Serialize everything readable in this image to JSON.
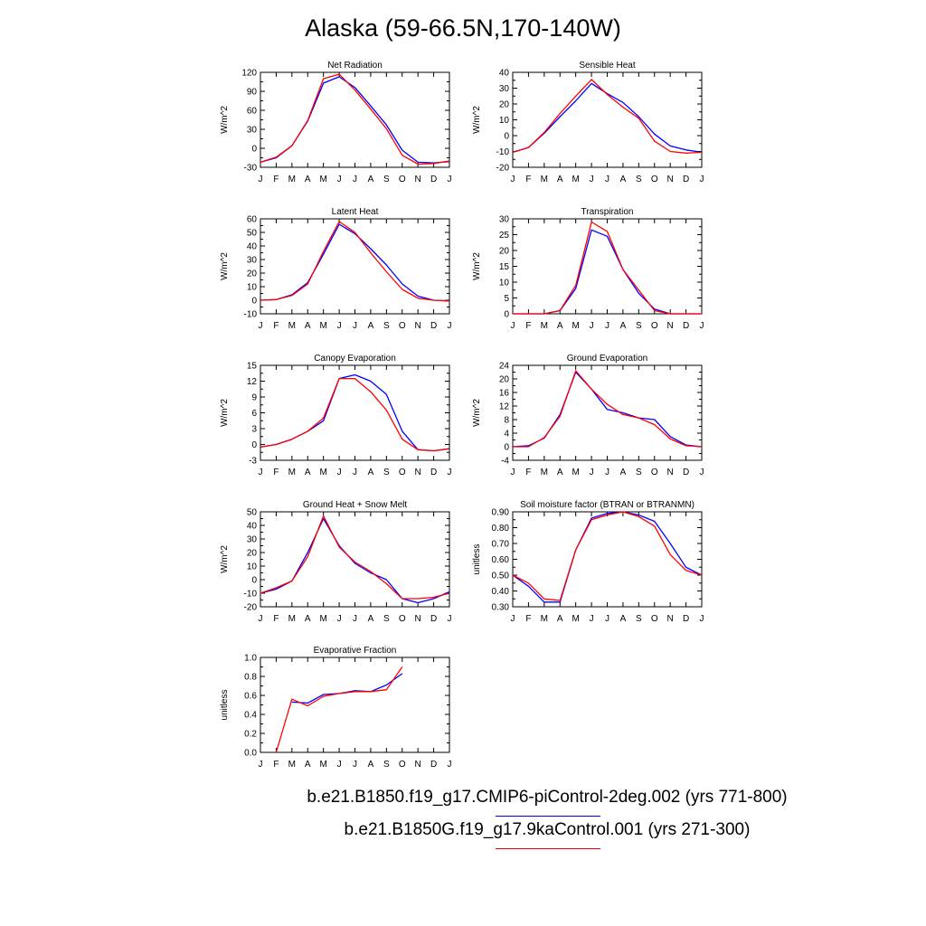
{
  "title": "Alaska (59-66.5N,170-140W)",
  "colors": {
    "series1": "#0000ff",
    "series2": "#ff0000"
  },
  "legend": [
    {
      "label": "b.e21.B1850.f19_g17.CMIP6-piControl-2deg.002 (yrs 771-800)",
      "color": "#0000ff"
    },
    {
      "label": "b.e21.B1850G.f19_g17.9kaControl.001 (yrs 271-300)",
      "color": "#ff0000"
    }
  ],
  "chart_data": [
    {
      "type": "line",
      "title": "Net Radiation",
      "ylabel": "W/m^2",
      "x": [
        "J",
        "F",
        "M",
        "A",
        "M",
        "J",
        "J",
        "A",
        "S",
        "O",
        "N",
        "D",
        "J"
      ],
      "yticks": [
        "-30",
        "0",
        "30",
        "60",
        "90",
        "120"
      ],
      "ylim": [
        -30,
        120
      ],
      "series": [
        {
          "values": [
            -22,
            -15,
            4,
            43,
            103,
            113,
            96,
            67,
            37,
            -3,
            -22,
            -23,
            -21
          ]
        },
        {
          "values": [
            -22,
            -14,
            4,
            44,
            110,
            117,
            92,
            62,
            31,
            -11,
            -25,
            -24,
            -20
          ]
        }
      ]
    },
    {
      "type": "line",
      "title": "Sensible Heat",
      "ylabel": "W/m^2",
      "x": [
        "J",
        "F",
        "M",
        "A",
        "M",
        "J",
        "J",
        "A",
        "S",
        "O",
        "N",
        "D",
        "J"
      ],
      "yticks": [
        "-20",
        "-10",
        "0",
        "10",
        "20",
        "30",
        "40"
      ],
      "ylim": [
        -20,
        40
      ],
      "series": [
        {
          "values": [
            -10.5,
            -7.5,
            1.5,
            12,
            22,
            33,
            26.5,
            21,
            12,
            1,
            -6.5,
            -9,
            -10.5
          ]
        },
        {
          "values": [
            -10.5,
            -7.5,
            2,
            14,
            25,
            35.5,
            26,
            18,
            11,
            -3.5,
            -10,
            -11,
            -10.5
          ]
        }
      ]
    },
    {
      "type": "line",
      "title": "Latent Heat",
      "ylabel": "W/m^2",
      "x": [
        "J",
        "F",
        "M",
        "A",
        "M",
        "J",
        "J",
        "A",
        "S",
        "O",
        "N",
        "D",
        "J"
      ],
      "yticks": [
        "-10",
        "0",
        "10",
        "20",
        "30",
        "40",
        "50",
        "60"
      ],
      "ylim": [
        -10,
        60
      ],
      "series": [
        {
          "values": [
            0,
            0.5,
            4,
            13,
            34,
            56,
            49,
            38,
            26,
            12,
            3,
            0,
            -0.5
          ]
        },
        {
          "values": [
            0,
            0.5,
            3.5,
            12,
            36,
            58,
            50,
            35,
            21,
            8,
            1.5,
            0,
            -0.5
          ]
        }
      ]
    },
    {
      "type": "line",
      "title": "Transpiration",
      "ylabel": "W/m^2",
      "x": [
        "J",
        "F",
        "M",
        "A",
        "M",
        "J",
        "J",
        "A",
        "S",
        "O",
        "N",
        "D",
        "J"
      ],
      "yticks": [
        "0",
        "5",
        "10",
        "15",
        "20",
        "25",
        "30"
      ],
      "ylim": [
        0,
        30
      ],
      "series": [
        {
          "values": [
            0,
            0,
            0,
            1,
            8,
            26.5,
            24.5,
            14,
            6.5,
            1.5,
            0,
            0,
            0
          ]
        },
        {
          "values": [
            0,
            0,
            0,
            1,
            9,
            29,
            26,
            14,
            7.5,
            1,
            0,
            0,
            0
          ]
        }
      ]
    },
    {
      "type": "line",
      "title": "Canopy Evaporation",
      "ylabel": "W/m^2",
      "x": [
        "J",
        "F",
        "M",
        "A",
        "M",
        "J",
        "J",
        "A",
        "S",
        "O",
        "N",
        "D",
        "J"
      ],
      "yticks": [
        "-3",
        "0",
        "3",
        "6",
        "9",
        "12",
        "15"
      ],
      "ylim": [
        -3,
        15
      ],
      "series": [
        {
          "values": [
            -0.5,
            0,
            1,
            2.5,
            4.5,
            12.5,
            13.2,
            12,
            9.5,
            2.5,
            -1,
            -1.2,
            -0.8
          ]
        },
        {
          "values": [
            -0.5,
            0,
            1,
            2.5,
            5,
            12.5,
            12.5,
            10,
            6.5,
            1,
            -1,
            -1.2,
            -0.8
          ]
        }
      ]
    },
    {
      "type": "line",
      "title": "Ground Evaporation",
      "ylabel": "W/m^2",
      "x": [
        "J",
        "F",
        "M",
        "A",
        "M",
        "J",
        "J",
        "A",
        "S",
        "O",
        "N",
        "D",
        "J"
      ],
      "yticks": [
        "-4",
        "0",
        "4",
        "8",
        "12",
        "16",
        "20",
        "24"
      ],
      "ylim": [
        -4,
        24
      ],
      "series": [
        {
          "values": [
            0,
            0.3,
            2.5,
            9.5,
            22,
            17,
            11,
            10,
            8.5,
            8,
            3,
            0.5,
            0
          ]
        },
        {
          "values": [
            0,
            0,
            2.7,
            9,
            22.4,
            17,
            12.5,
            9.5,
            8.5,
            6.5,
            2.3,
            0.3,
            0
          ]
        }
      ]
    },
    {
      "type": "line",
      "title": "Ground Heat + Snow Melt",
      "ylabel": "W/m^2",
      "x": [
        "J",
        "F",
        "M",
        "A",
        "M",
        "J",
        "J",
        "A",
        "S",
        "O",
        "N",
        "D",
        "J"
      ],
      "yticks": [
        "-20",
        "-10",
        "0",
        "10",
        "20",
        "30",
        "40",
        "50"
      ],
      "ylim": [
        -20,
        50
      ],
      "series": [
        {
          "values": [
            -10,
            -7,
            -1,
            20,
            45,
            25,
            12,
            5,
            0,
            -14,
            -17,
            -14,
            -9
          ]
        },
        {
          "values": [
            -10,
            -6,
            -1,
            17,
            47,
            24,
            13,
            6,
            -3,
            -14,
            -14,
            -13,
            -10
          ]
        }
      ]
    },
    {
      "type": "line",
      "title": "Soil moisture factor (BTRAN or BTRANMN)",
      "ylabel": "unitless",
      "x": [
        "J",
        "F",
        "M",
        "A",
        "M",
        "J",
        "J",
        "A",
        "S",
        "O",
        "N",
        "D",
        "J"
      ],
      "yticks": [
        "0.30",
        "0.40",
        "0.50",
        "0.60",
        "0.70",
        "0.80",
        "0.90"
      ],
      "ylim": [
        0.3,
        0.9
      ],
      "series": [
        {
          "values": [
            0.5,
            0.43,
            0.33,
            0.33,
            0.66,
            0.86,
            0.89,
            0.9,
            0.88,
            0.84,
            0.7,
            0.55,
            0.5
          ]
        },
        {
          "values": [
            0.5,
            0.45,
            0.35,
            0.34,
            0.66,
            0.85,
            0.88,
            0.9,
            0.87,
            0.81,
            0.63,
            0.53,
            0.5
          ]
        }
      ]
    },
    {
      "type": "line",
      "title": "Evaporative Fraction",
      "ylabel": "unitless",
      "x": [
        "J",
        "F",
        "M",
        "A",
        "M",
        "J",
        "J",
        "A",
        "S",
        "O",
        "N",
        "D",
        "J"
      ],
      "yticks": [
        "0.0",
        "0.2",
        "0.4",
        "0.6",
        "0.8",
        "1.0"
      ],
      "ylim": [
        0,
        1
      ],
      "series": [
        {
          "values": [
            null,
            null,
            0.53,
            0.52,
            0.61,
            0.62,
            0.65,
            0.64,
            0.71,
            0.83,
            null,
            null,
            null
          ]
        },
        {
          "values": [
            null,
            0,
            0.56,
            0.49,
            0.59,
            0.62,
            0.64,
            0.64,
            0.66,
            0.9,
            null,
            null,
            null
          ]
        }
      ]
    }
  ]
}
